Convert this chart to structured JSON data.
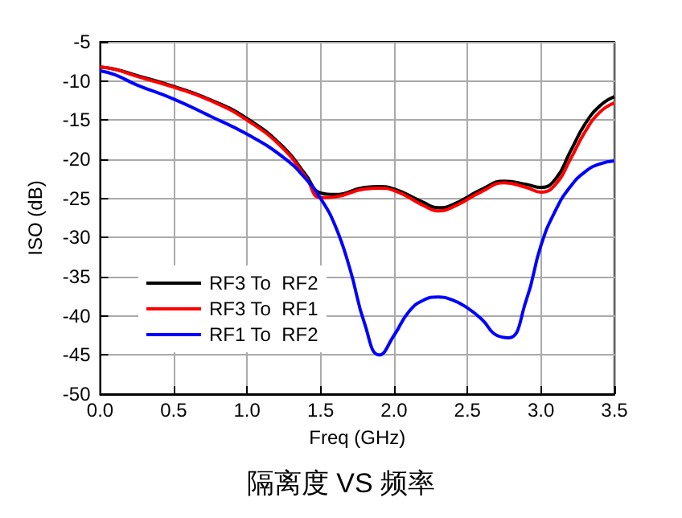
{
  "chart_data": {
    "type": "line",
    "title": "隔离度 VS 频率",
    "xlabel": "Freq (GHz)",
    "ylabel": "ISO (dB)",
    "xlim": [
      0,
      3.5
    ],
    "xticks": [
      {
        "value": 0,
        "label": "0.0"
      },
      0.5,
      {
        "value": 1,
        "label": "1.0"
      },
      1.5,
      {
        "value": 2,
        "label": "2.0"
      },
      2.5,
      {
        "value": 3,
        "label": "3.0"
      },
      3.5
    ],
    "ylim": [
      -50,
      -5
    ],
    "yticks": [
      -50,
      -45,
      -40,
      -35,
      -30,
      -25,
      -20,
      -15,
      -10,
      -5
    ],
    "grid": true,
    "legend": "bottom left",
    "marker": "none",
    "line_style": "solid",
    "series": [
      {
        "name": "RF3 To  RF2",
        "color": "#000000",
        "x": [
          0,
          0.1,
          0.25,
          0.5,
          0.75,
          1.0,
          1.25,
          1.4,
          1.5,
          1.6,
          1.8,
          1.9,
          2.0,
          2.2,
          2.3,
          2.4,
          2.6,
          2.75,
          2.9,
          3.0,
          3.1,
          3.2,
          3.3,
          3.4,
          3.5
        ],
        "values": [
          -8.2,
          -8.5,
          -9.3,
          -10.7,
          -12.4,
          -14.8,
          -18.5,
          -22,
          -24.3,
          -24.5,
          -23.6,
          -23.5,
          -23.8,
          -25.5,
          -26.2,
          -25.8,
          -23.8,
          -22.8,
          -23.2,
          -23.6,
          -22.5,
          -19,
          -15.5,
          -13.2,
          -12
        ]
      },
      {
        "name": "RF3 To  RF1",
        "color": "#ff0000",
        "x": [
          0,
          0.1,
          0.25,
          0.5,
          0.75,
          1.0,
          1.25,
          1.4,
          1.5,
          1.6,
          1.8,
          1.9,
          2.0,
          2.2,
          2.3,
          2.4,
          2.6,
          2.75,
          2.9,
          3.0,
          3.1,
          3.2,
          3.3,
          3.4,
          3.5
        ],
        "values": [
          -8.2,
          -8.5,
          -9.4,
          -10.8,
          -12.5,
          -15,
          -18.7,
          -22.3,
          -24.9,
          -24.8,
          -23.8,
          -23.7,
          -24,
          -25.9,
          -26.6,
          -26.1,
          -24.1,
          -23,
          -23.6,
          -24.2,
          -23.2,
          -20,
          -16.5,
          -14,
          -12.8
        ]
      },
      {
        "name": "RF1 To  RF2",
        "color": "#0000ff",
        "x": [
          0,
          0.1,
          0.25,
          0.5,
          0.75,
          1.0,
          1.25,
          1.4,
          1.5,
          1.6,
          1.7,
          1.8,
          1.9,
          2.0,
          2.1,
          2.2,
          2.3,
          2.4,
          2.5,
          2.6,
          2.7,
          2.78,
          2.9,
          3.0,
          3.1,
          3.2,
          3.3,
          3.4,
          3.5
        ],
        "values": [
          -8.7,
          -9.2,
          -10.5,
          -12.3,
          -14.5,
          -16.8,
          -19.8,
          -22.5,
          -25,
          -28.5,
          -34,
          -41,
          -45,
          -42.5,
          -39.5,
          -38,
          -37.6,
          -38,
          -39,
          -40.5,
          -42.5,
          -42.8,
          -38,
          -31,
          -26.5,
          -23.5,
          -21.6,
          -20.6,
          -20.2
        ]
      }
    ]
  }
}
